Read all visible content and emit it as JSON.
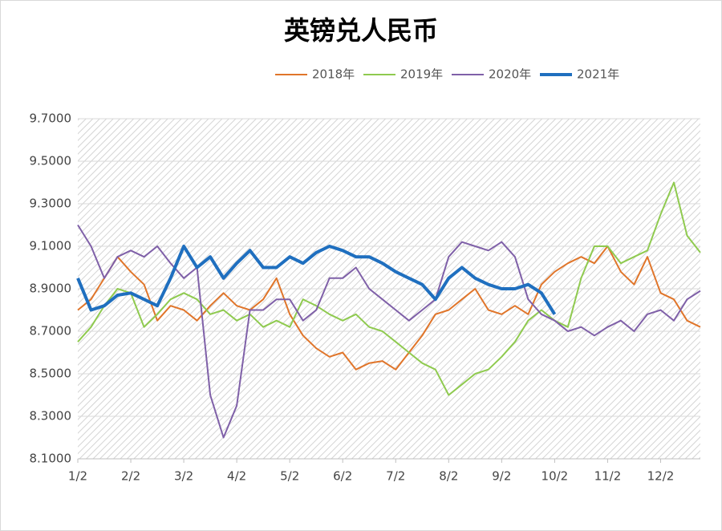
{
  "chart_data": {
    "type": "line",
    "title": "英镑兑人民币",
    "categories": [
      "1/2",
      null,
      null,
      null,
      "2/2",
      null,
      null,
      null,
      "3/2",
      null,
      null,
      null,
      "4/2",
      null,
      null,
      null,
      "5/2",
      null,
      null,
      null,
      "6/2",
      null,
      null,
      null,
      "7/2",
      null,
      null,
      null,
      "8/2",
      null,
      null,
      null,
      "9/2",
      null,
      null,
      null,
      "10/2",
      null,
      null,
      null,
      "11/2",
      null,
      null,
      null,
      "12/2",
      null,
      null,
      null
    ],
    "series": [
      {
        "name": "2018年",
        "color": "#e0752a",
        "width": 2,
        "values": [
          8.8,
          8.85,
          8.95,
          9.05,
          8.98,
          8.92,
          8.75,
          8.82,
          8.8,
          8.75,
          8.82,
          8.88,
          8.82,
          8.8,
          8.85,
          8.95,
          8.78,
          8.68,
          8.62,
          8.58,
          8.6,
          8.52,
          8.55,
          8.56,
          8.52,
          8.6,
          8.68,
          8.78,
          8.8,
          8.85,
          8.9,
          8.8,
          8.78,
          8.82,
          8.78,
          8.92,
          8.98,
          9.02,
          9.05,
          9.02,
          9.1,
          8.98,
          8.92,
          9.05,
          8.88,
          8.85,
          8.75,
          8.72
        ]
      },
      {
        "name": "2019年",
        "color": "#8fca4f",
        "width": 2,
        "values": [
          8.65,
          8.72,
          8.82,
          8.9,
          8.88,
          8.72,
          8.78,
          8.85,
          8.88,
          8.85,
          8.78,
          8.8,
          8.75,
          8.78,
          8.72,
          8.75,
          8.72,
          8.85,
          8.82,
          8.78,
          8.75,
          8.78,
          8.72,
          8.7,
          8.65,
          8.6,
          8.55,
          8.52,
          8.4,
          8.45,
          8.5,
          8.52,
          8.58,
          8.65,
          8.75,
          8.8,
          8.75,
          8.72,
          8.95,
          9.1,
          9.1,
          9.02,
          9.05,
          9.08,
          9.25,
          9.4,
          9.15,
          9.07
        ]
      },
      {
        "name": "2020年",
        "color": "#7f60a8",
        "width": 2,
        "values": [
          9.2,
          9.1,
          8.95,
          9.05,
          9.08,
          9.05,
          9.1,
          9.02,
          8.95,
          9.0,
          8.4,
          8.2,
          8.35,
          8.8,
          8.8,
          8.85,
          8.85,
          8.75,
          8.8,
          8.95,
          8.95,
          9.0,
          8.9,
          8.85,
          8.8,
          8.75,
          8.8,
          8.85,
          9.05,
          9.12,
          9.1,
          9.08,
          9.12,
          9.05,
          8.85,
          8.78,
          8.75,
          8.7,
          8.72,
          8.68,
          8.72,
          8.75,
          8.7,
          8.78,
          8.8,
          8.75,
          8.85,
          8.89
        ]
      },
      {
        "name": "2021年",
        "color": "#1f6fbf",
        "width": 4,
        "values": [
          8.95,
          8.8,
          8.82,
          8.87,
          8.88,
          8.85,
          8.82,
          8.95,
          9.1,
          9.0,
          9.05,
          8.95,
          9.02,
          9.08,
          9.0,
          9.0,
          9.05,
          9.02,
          9.07,
          9.1,
          9.08,
          9.05,
          9.05,
          9.02,
          8.98,
          8.95,
          8.92,
          8.85,
          8.95,
          9.0,
          8.95,
          8.92,
          8.9,
          8.9,
          8.92,
          8.88,
          8.78,
          null,
          null,
          null,
          null,
          null,
          null,
          null,
          null,
          null,
          null,
          null
        ]
      }
    ],
    "ylim": [
      8.1,
      9.7
    ],
    "yticks": [
      {
        "value": 8.1,
        "label": "8.1000"
      },
      {
        "value": 8.3,
        "label": "8.3000"
      },
      {
        "value": 8.5,
        "label": "8.5000"
      },
      {
        "value": 8.7,
        "label": "8.7000"
      },
      {
        "value": 8.9,
        "label": "8.9000"
      },
      {
        "value": 9.1,
        "label": "9.1000"
      },
      {
        "value": 9.3,
        "label": "9.3000"
      },
      {
        "value": 9.5,
        "label": "9.5000"
      },
      {
        "value": 9.7,
        "label": "9.7000"
      }
    ],
    "grid": true,
    "legend": "top"
  }
}
